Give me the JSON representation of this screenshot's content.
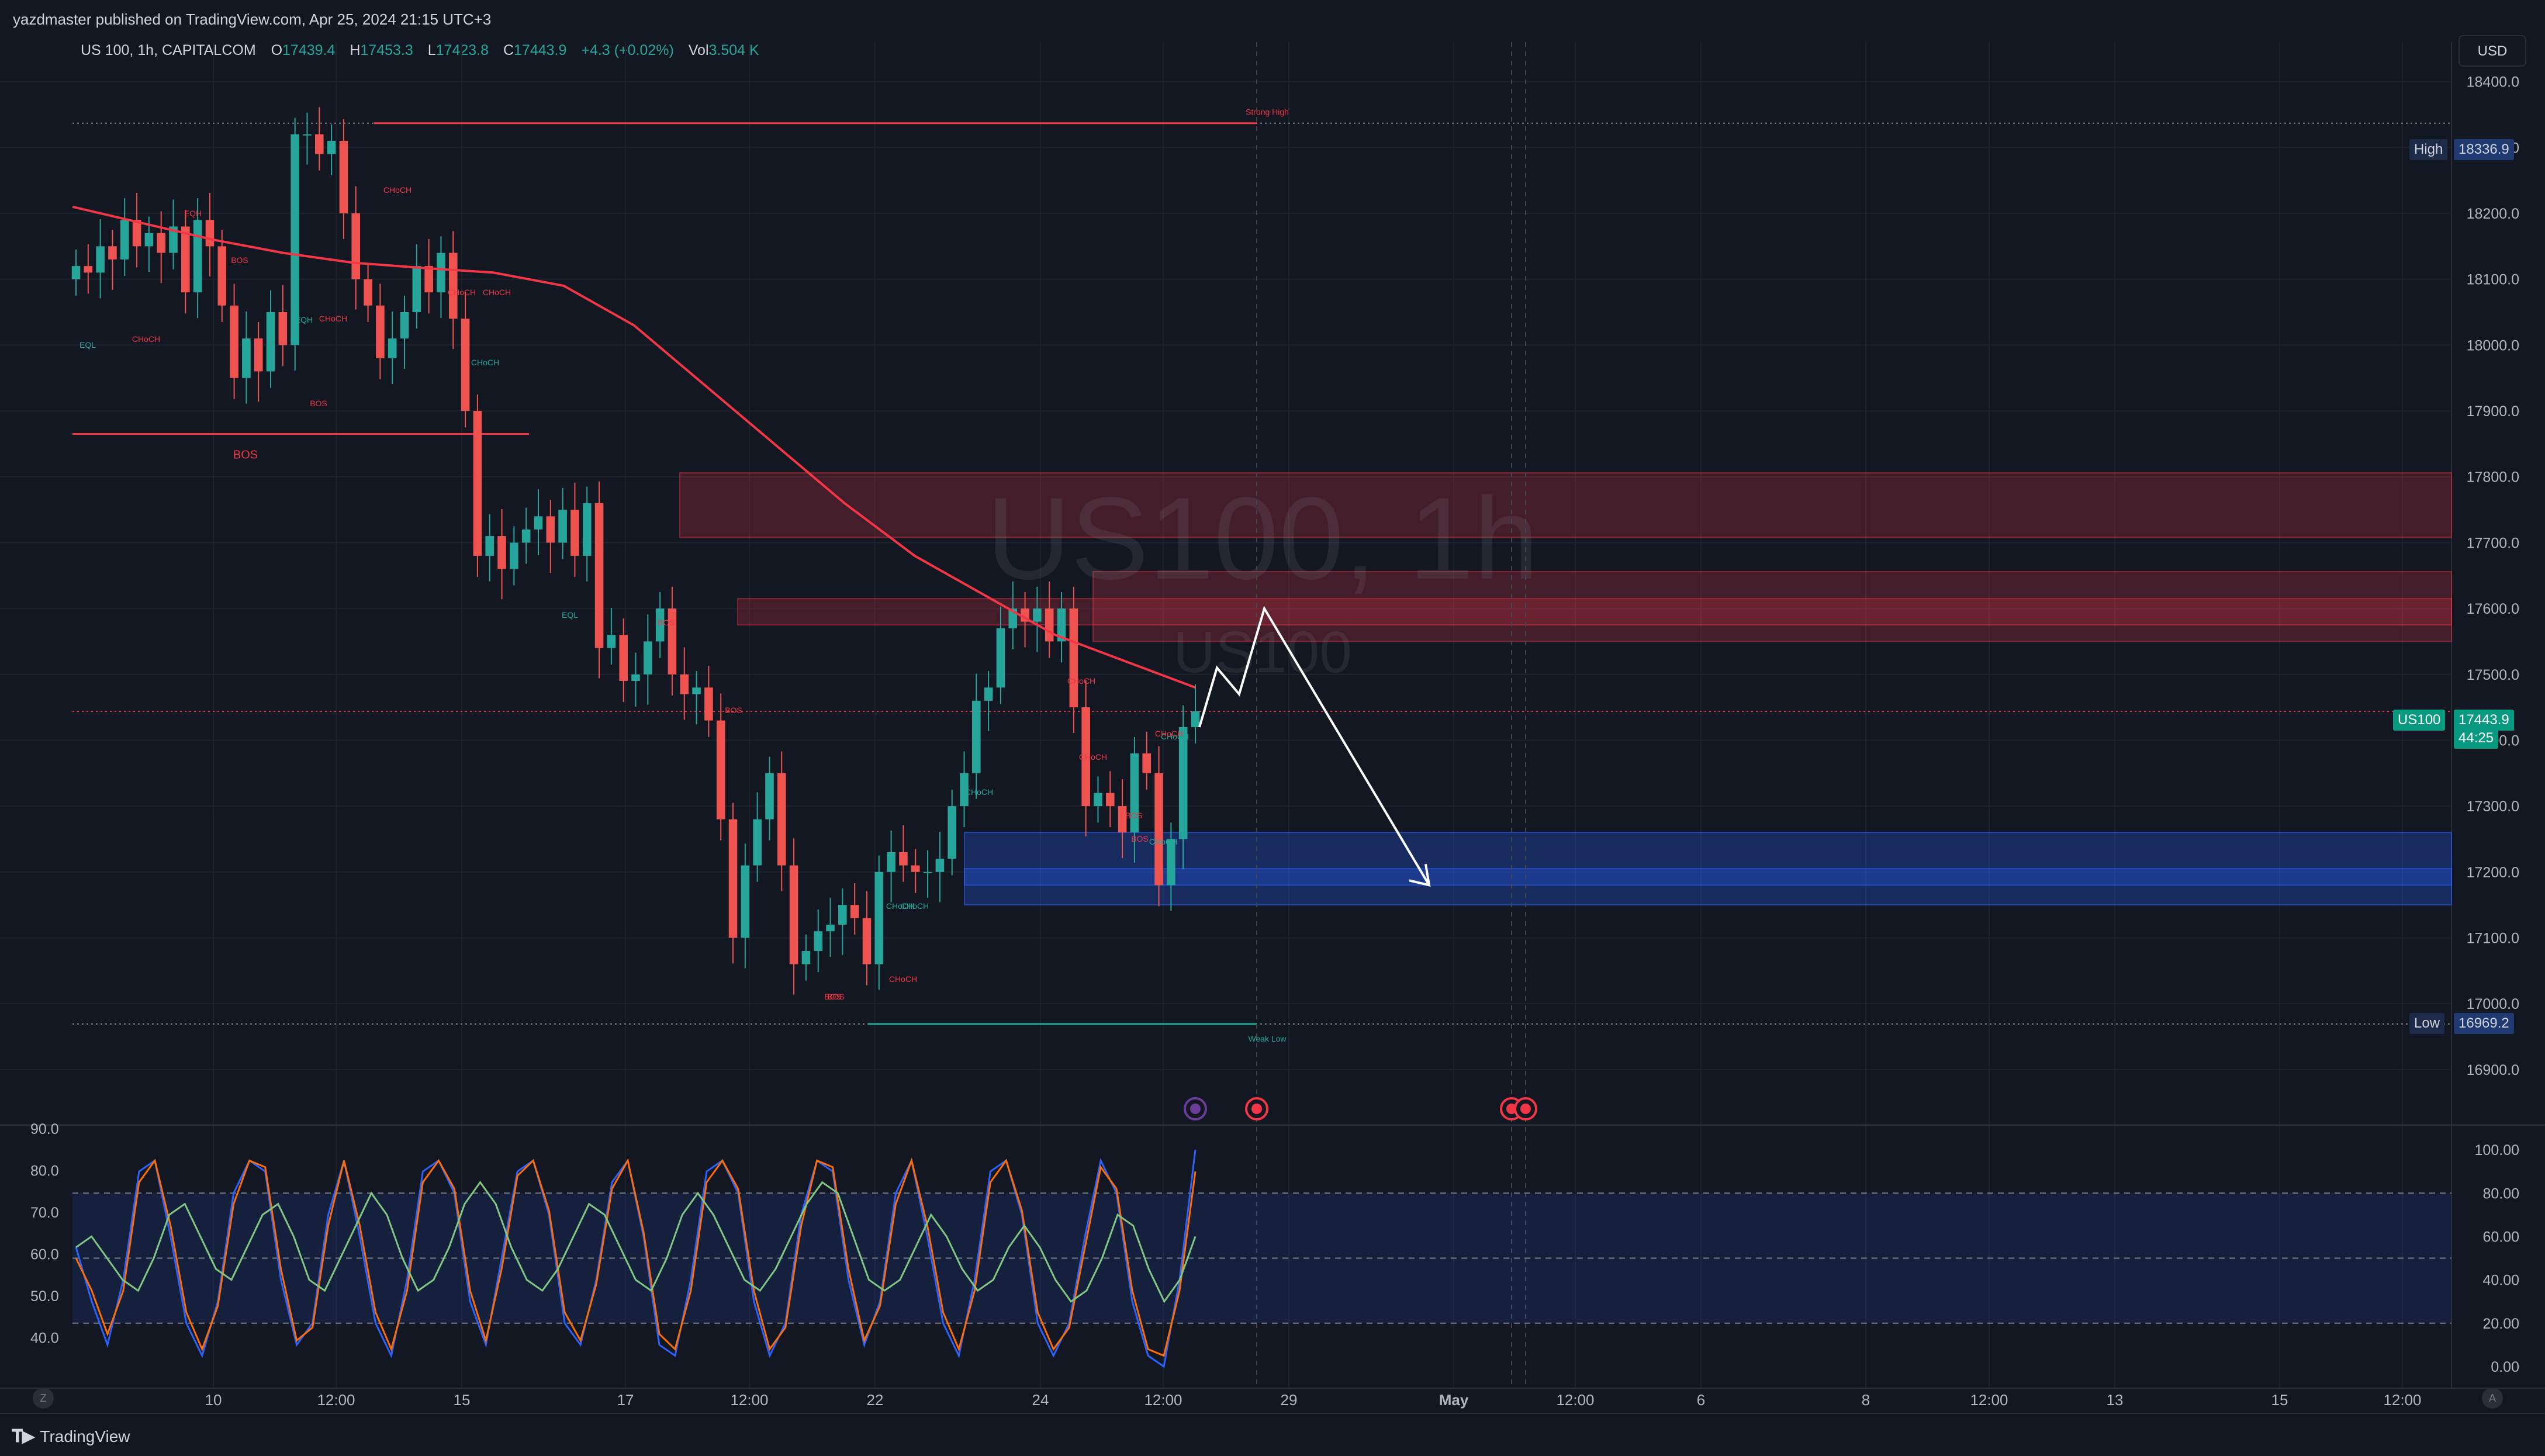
{
  "header": {
    "publish_text": "yazdmaster published on TradingView.com, Apr 25, 2024 21:15 UTC+3",
    "symbol_desc": "US 100, 1h, CAPITALCOM",
    "ohlc": {
      "o_label": "O",
      "o": "17439.4",
      "h_label": "H",
      "h": "17453.3",
      "l_label": "L",
      "l": "17423.8",
      "c_label": "C",
      "c": "17443.9",
      "change": "+4.3 (+0.02%)",
      "vol_label": "Vol",
      "vol": "3.504 K"
    }
  },
  "currency_button": "USD",
  "watermark": {
    "main": "US100, 1h",
    "sub": "US100"
  },
  "price_tags": {
    "high_label": "High",
    "high_value": "18336.9",
    "low_label": "Low",
    "low_value": "16969.2",
    "last_label": "US100",
    "last_value": "17443.9",
    "countdown": "44:25"
  },
  "annotations": {
    "strong_high": "Strong High",
    "weak_low": "Weak Low",
    "bos_main": "BOS",
    "labels": [
      "EQH",
      "BOS",
      "CHoCH",
      "EQL",
      "CHoCH",
      "EQH",
      "CHoCH",
      "BOS",
      "CHoCH",
      "CHoCH",
      "CHoCH",
      "EQL",
      "BOS",
      "BOS",
      "BOS",
      "CHoCH",
      "CHoCH",
      "BOS",
      "CHoCH",
      "CHoCH",
      "CHoCH",
      "CHoCH",
      "BOS",
      "CHoCH",
      "BOS",
      "CHoCH",
      "CHoCH"
    ]
  },
  "brand": "TradingView",
  "scale_buttons": {
    "left": "Z",
    "right": "A"
  },
  "chart_data": [
    {
      "type": "line",
      "title": "US 100, 1h, CAPITALCOM",
      "xlabel": "",
      "ylabel": "",
      "ylim": [
        16820,
        18460
      ],
      "y_ticks": [
        18400.0,
        18300.0,
        18200.0,
        18100.0,
        18000.0,
        17900.0,
        17800.0,
        17700.0,
        17600.0,
        17500.0,
        17400.0,
        17300.0,
        17200.0,
        17100.0,
        17000.0,
        16900.0
      ],
      "x_ticks": [
        "10",
        "12:00",
        "15",
        "17",
        "12:00",
        "22",
        "24",
        "12:00",
        "29",
        "May",
        "12:00",
        "6",
        "8",
        "12:00",
        "13",
        "15",
        "12:00"
      ],
      "series": [
        {
          "name": "",
          "values": [
            18120,
            18110,
            18150,
            18130,
            18190,
            18150,
            18170,
            18140,
            18180,
            18080,
            18190,
            18150,
            18060,
            17950,
            18010,
            17960,
            18050,
            18000,
            18320,
            18320,
            18290,
            18310,
            18200,
            18100,
            18060,
            17980,
            18010,
            18050,
            18120,
            18080,
            18140,
            18040,
            17900,
            17680,
            17710,
            17660,
            17700,
            17720,
            17740,
            17700,
            17750,
            17680,
            17760,
            17540,
            17560,
            17490,
            17500,
            17550,
            17600,
            17500,
            17470,
            17480,
            17430,
            17280,
            17100,
            17210,
            17280,
            17350,
            17210,
            17060,
            17080,
            17110,
            17120,
            17150,
            17130,
            17060,
            17200,
            17230,
            17210,
            17200,
            17200,
            17220,
            17300,
            17350,
            17460,
            17480,
            17570,
            17600,
            17580,
            17600,
            17550,
            17600,
            17450,
            17300,
            17320,
            17300,
            17260,
            17380,
            17350,
            17180,
            17250,
            17420,
            17443.9
          ]
        },
        {
          "name": "",
          "values": [
            18210,
            18185,
            18160,
            18140,
            18125,
            18117,
            18110,
            18090,
            18030,
            17940,
            17850,
            17760,
            17680,
            17620,
            17560,
            17520,
            17480
          ]
        }
      ],
      "lines": {
        "strong_high": 18336.9,
        "weak_low": 16969.2,
        "last_price": 17443.9,
        "bos_level": 17865
      },
      "zones": [
        {
          "kind": "supply",
          "from": 17708,
          "to": 17806
        },
        {
          "kind": "supply",
          "from": 17550,
          "to": 17656
        },
        {
          "kind": "supply",
          "from": 17575,
          "to": 17615
        },
        {
          "kind": "demand",
          "from": 17150,
          "to": 17260
        },
        {
          "kind": "demand",
          "from": 17180,
          "to": 17205
        }
      ],
      "projection": [
        17420,
        17510,
        17470,
        17600,
        17180
      ]
    },
    {
      "type": "line",
      "title": "",
      "ylim": [
        -10,
        110
      ],
      "y_ticks_right": [
        "100.00",
        "80.00",
        "60.00",
        "40.00",
        "20.00",
        "0.00"
      ],
      "y_ticks_left": [
        "90.0",
        "80.0",
        "70.0",
        "60.0",
        "50.0",
        "40.0"
      ],
      "bands": {
        "upper": 80,
        "middle": 50,
        "lower": 20
      },
      "series": [
        {
          "name": "",
          "color": "#2962ff",
          "values": [
            55,
            30,
            10,
            40,
            90,
            95,
            60,
            20,
            5,
            30,
            80,
            95,
            90,
            40,
            10,
            20,
            70,
            95,
            60,
            20,
            5,
            40,
            90,
            95,
            80,
            30,
            10,
            50,
            90,
            95,
            70,
            20,
            10,
            40,
            85,
            95,
            60,
            10,
            5,
            40,
            90,
            95,
            80,
            30,
            5,
            20,
            70,
            95,
            90,
            40,
            10,
            30,
            80,
            95,
            60,
            20,
            5,
            40,
            90,
            95,
            70,
            20,
            5,
            20,
            60,
            95,
            80,
            30,
            5,
            0,
            40,
            100
          ]
        },
        {
          "name": "",
          "color": "#ff6d00",
          "values": [
            50,
            35,
            15,
            35,
            85,
            95,
            65,
            25,
            8,
            28,
            75,
            95,
            92,
            45,
            12,
            18,
            65,
            95,
            65,
            25,
            8,
            35,
            85,
            95,
            82,
            35,
            12,
            45,
            88,
            95,
            72,
            25,
            12,
            38,
            82,
            95,
            62,
            15,
            8,
            35,
            85,
            95,
            82,
            35,
            8,
            18,
            65,
            95,
            92,
            45,
            12,
            28,
            75,
            95,
            65,
            25,
            8,
            35,
            85,
            95,
            72,
            25,
            8,
            18,
            55,
            92,
            82,
            35,
            8,
            5,
            35,
            90
          ]
        },
        {
          "name": "",
          "color": "#81c784",
          "values": [
            55,
            60,
            50,
            40,
            35,
            50,
            70,
            75,
            60,
            45,
            40,
            55,
            70,
            75,
            60,
            40,
            35,
            50,
            65,
            80,
            70,
            50,
            35,
            40,
            55,
            75,
            85,
            75,
            55,
            40,
            35,
            45,
            60,
            75,
            70,
            55,
            40,
            35,
            50,
            70,
            80,
            70,
            55,
            40,
            35,
            45,
            60,
            75,
            85,
            80,
            60,
            40,
            35,
            40,
            55,
            70,
            60,
            45,
            35,
            40,
            55,
            65,
            55,
            40,
            30,
            35,
            50,
            70,
            65,
            45,
            30,
            40,
            60
          ]
        }
      ]
    }
  ],
  "colors": {
    "bg": "#131722",
    "up": "#26a69a",
    "down": "#ef5350",
    "ema": "#f23645",
    "supply_zone": "rgba(242,54,69,0.22)",
    "demand_zone": "rgba(41,98,255,0.28)",
    "stoch_k": "#2962ff",
    "stoch_d": "#ff6d00",
    "stoch_rsi": "#81c784",
    "band_fill": "rgba(41,98,255,0.12)"
  }
}
